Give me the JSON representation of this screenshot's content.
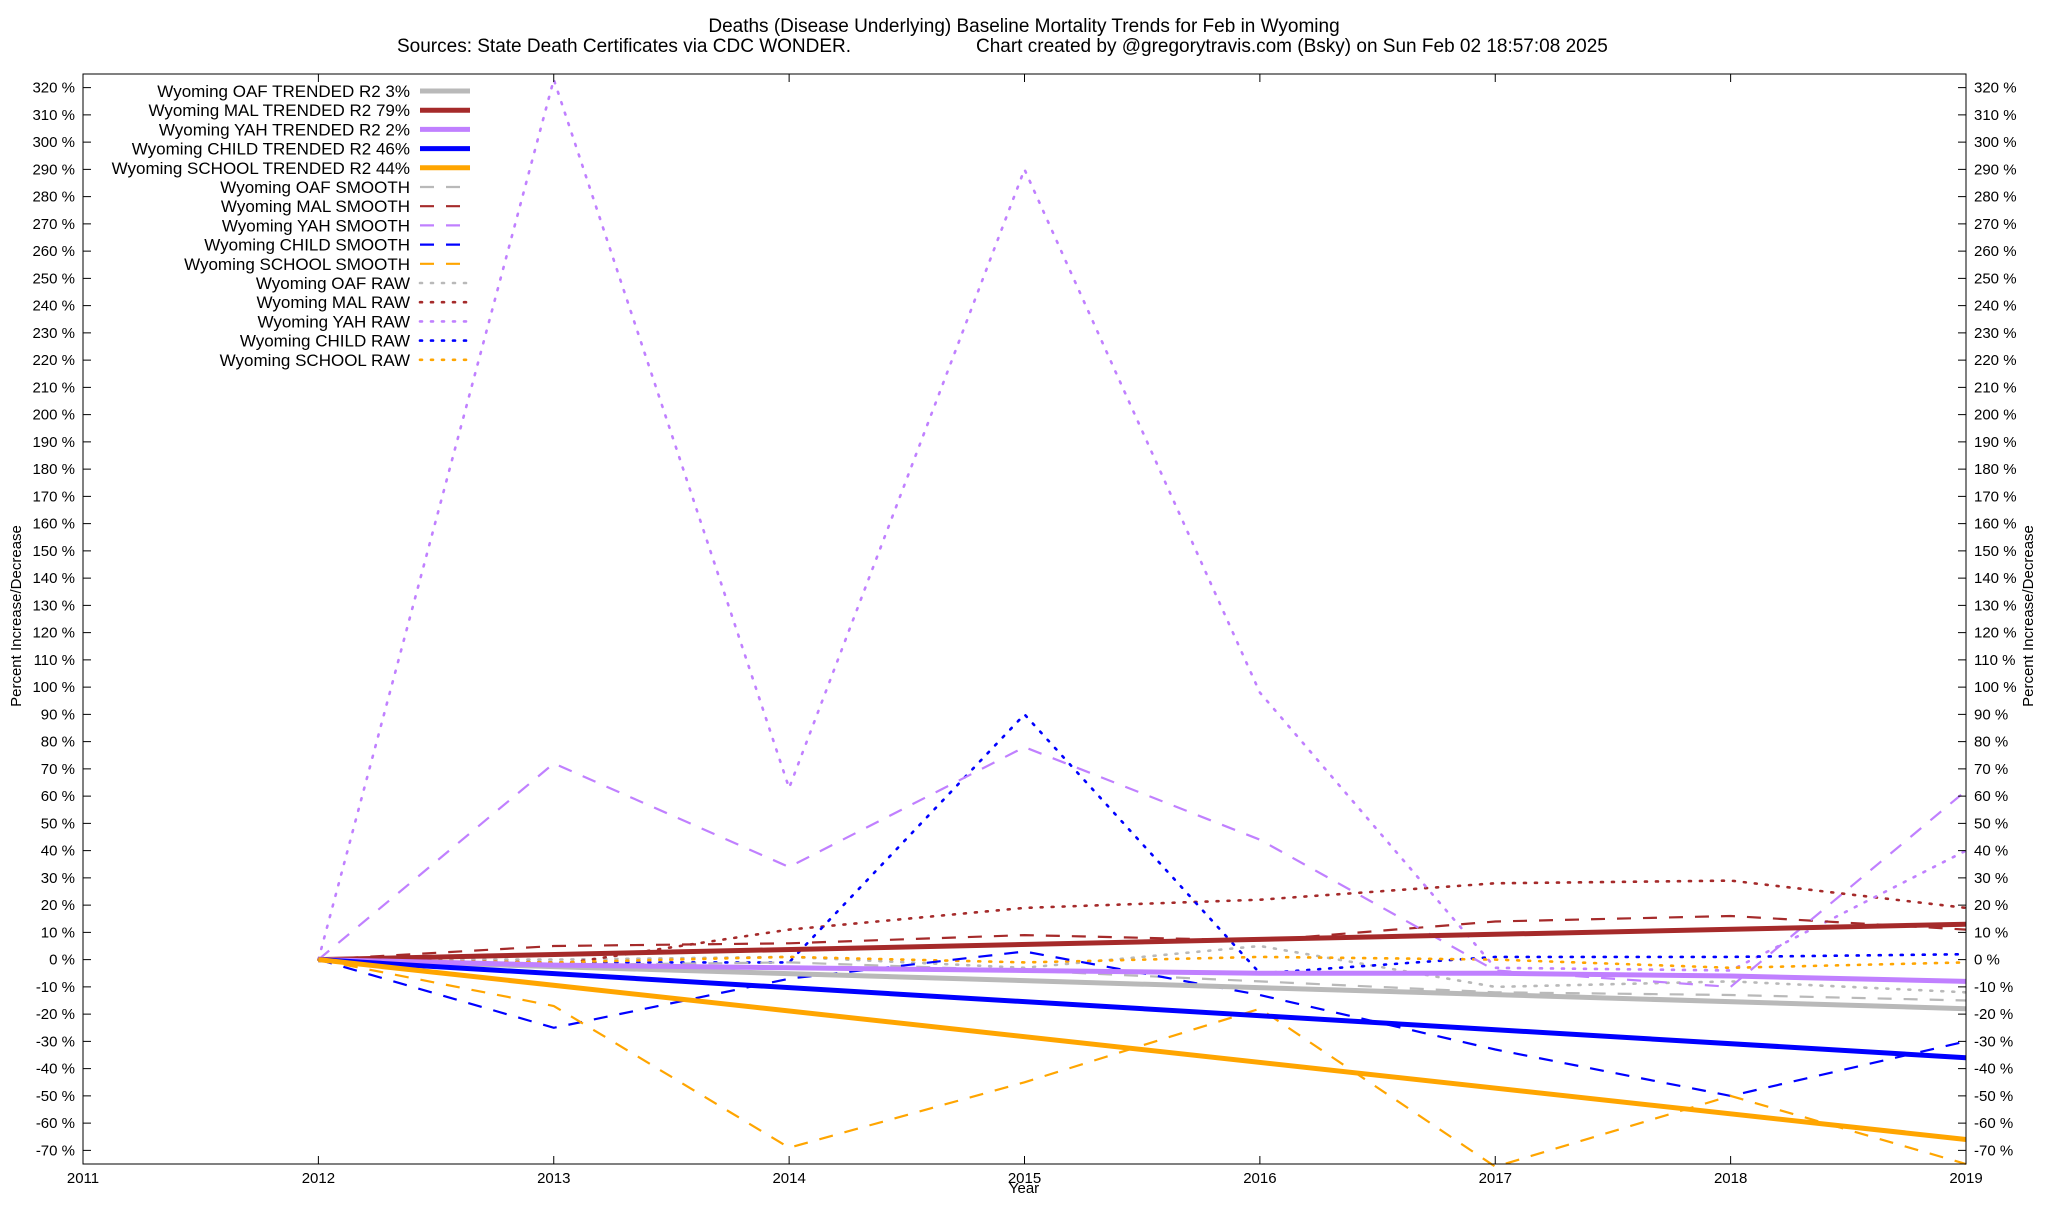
{
  "chart_data": {
    "type": "line",
    "title": "Deaths (Disease Underlying)  Baseline Mortality Trends for Feb in Wyoming",
    "subtitle_left": "Sources: State Death Certificates via CDC WONDER.",
    "subtitle_right": "Chart created by @gregorytravis.com (Bsky) on Sun Feb 02 18:57:08 2025",
    "xlabel": "Year",
    "ylabel": "Percent Increase/Decrease",
    "y2label": "Percent Increase/Decrease",
    "xlim": [
      2011,
      2019
    ],
    "ylim": [
      -75,
      325
    ],
    "x_ticks": [
      "2011",
      "2012",
      "2013",
      "2014",
      "2015",
      "2016",
      "2017",
      "2018",
      "2019"
    ],
    "y_ticks": [
      "320 %",
      "310 %",
      "300 %",
      "290 %",
      "280 %",
      "270 %",
      "260 %",
      "250 %",
      "240 %",
      "230 %",
      "220 %",
      "210 %",
      "200 %",
      "190 %",
      "180 %",
      "170 %",
      "160 %",
      "150 %",
      "140 %",
      "130 %",
      "120 %",
      "110 %",
      "100 %",
      "90 %",
      "80 %",
      "70 %",
      "60 %",
      "50 %",
      "40 %",
      "30 %",
      "20 %",
      "10 %",
      "0 %",
      "-10 %",
      "-20 %",
      "-30 %",
      "-40 %",
      "-50 %",
      "-60 %",
      "-70 %"
    ],
    "grid": false,
    "legend_position": "top-left",
    "series": [
      {
        "name": "Wyoming OAF TRENDED R2  3%",
        "style": "solid",
        "color": "#b9b9b9",
        "x": [
          2012,
          2019
        ],
        "y": [
          0,
          -18
        ]
      },
      {
        "name": "Wyoming MAL TRENDED R2  79%",
        "style": "solid",
        "color": "#a52a2a",
        "x": [
          2012,
          2019
        ],
        "y": [
          0,
          13
        ]
      },
      {
        "name": "Wyoming YAH TRENDED R2  2%",
        "style": "solid",
        "color": "#c080ff",
        "x": [
          2012,
          2013,
          2014,
          2015,
          2016,
          2017,
          2018,
          2019
        ],
        "y": [
          0,
          -2,
          -3,
          -4,
          -5,
          -5,
          -6,
          -8
        ]
      },
      {
        "name": "Wyoming CHILD TRENDED R2  46%",
        "style": "solid",
        "color": "#0000ff",
        "x": [
          2012,
          2019
        ],
        "y": [
          0,
          -36
        ]
      },
      {
        "name": "Wyoming SCHOOL TRENDED R2  44%",
        "style": "solid",
        "color": "#ffa500",
        "x": [
          2012,
          2019
        ],
        "y": [
          0,
          -66
        ]
      },
      {
        "name": "Wyoming OAF SMOOTH",
        "style": "dashed",
        "color": "#b9b9b9",
        "x": [
          2012,
          2013,
          2014,
          2015,
          2016,
          2017,
          2018,
          2019
        ],
        "y": [
          0,
          -2,
          -1,
          -4,
          -8,
          -12,
          -13,
          -15
        ]
      },
      {
        "name": "Wyoming MAL SMOOTH",
        "style": "dashed",
        "color": "#a52a2a",
        "x": [
          2012,
          2013,
          2014,
          2015,
          2016,
          2017,
          2018,
          2019
        ],
        "y": [
          0,
          5,
          6,
          9,
          7,
          14,
          16,
          11
        ]
      },
      {
        "name": "Wyoming YAH SMOOTH",
        "style": "dashed",
        "color": "#c080ff",
        "x": [
          2012,
          2013,
          2014,
          2015,
          2016,
          2017,
          2018,
          2019
        ],
        "y": [
          0,
          72,
          34,
          78,
          44,
          -4,
          -10,
          62
        ]
      },
      {
        "name": "Wyoming CHILD SMOOTH",
        "style": "dashed",
        "color": "#0000ff",
        "x": [
          2012,
          2013,
          2014,
          2015,
          2016,
          2017,
          2018,
          2019
        ],
        "y": [
          0,
          -25,
          -7,
          3,
          -13,
          -33,
          -50,
          -30
        ]
      },
      {
        "name": "Wyoming SCHOOL SMOOTH",
        "style": "dashed",
        "color": "#ffa500",
        "x": [
          2012,
          2013,
          2014,
          2015,
          2016,
          2017,
          2018,
          2019
        ],
        "y": [
          0,
          -17,
          -69,
          -45,
          -18,
          -76,
          -50,
          -75
        ]
      },
      {
        "name": "Wyoming OAF RAW",
        "style": "dotted",
        "color": "#b9b9b9",
        "x": [
          2012,
          2013,
          2014,
          2015,
          2016,
          2017,
          2018,
          2019
        ],
        "y": [
          0,
          0,
          1,
          -3,
          5,
          -10,
          -8,
          -12
        ]
      },
      {
        "name": "Wyoming MAL RAW",
        "style": "dotted",
        "color": "#a52a2a",
        "x": [
          2012,
          2013,
          2014,
          2015,
          2016,
          2017,
          2018,
          2019
        ],
        "y": [
          0,
          -2,
          11,
          19,
          22,
          28,
          29,
          19
        ]
      },
      {
        "name": "Wyoming YAH RAW",
        "style": "dotted",
        "color": "#c080ff",
        "x": [
          2012,
          2013,
          2014,
          2015,
          2016,
          2017,
          2018,
          2019
        ],
        "y": [
          0,
          323,
          63,
          290,
          98,
          -3,
          -4,
          40
        ]
      },
      {
        "name": "Wyoming CHILD RAW",
        "style": "dotted",
        "color": "#0000ff",
        "x": [
          2012,
          2013,
          2014,
          2015,
          2016,
          2017,
          2018,
          2019
        ],
        "y": [
          0,
          -1,
          -1,
          90,
          -5,
          1,
          1,
          2
        ]
      },
      {
        "name": "Wyoming SCHOOL RAW",
        "style": "dotted",
        "color": "#ffa500",
        "x": [
          2012,
          2013,
          2014,
          2015,
          2016,
          2017,
          2018,
          2019
        ],
        "y": [
          0,
          -1,
          1,
          -1,
          1,
          0,
          -3,
          -1
        ]
      }
    ]
  }
}
